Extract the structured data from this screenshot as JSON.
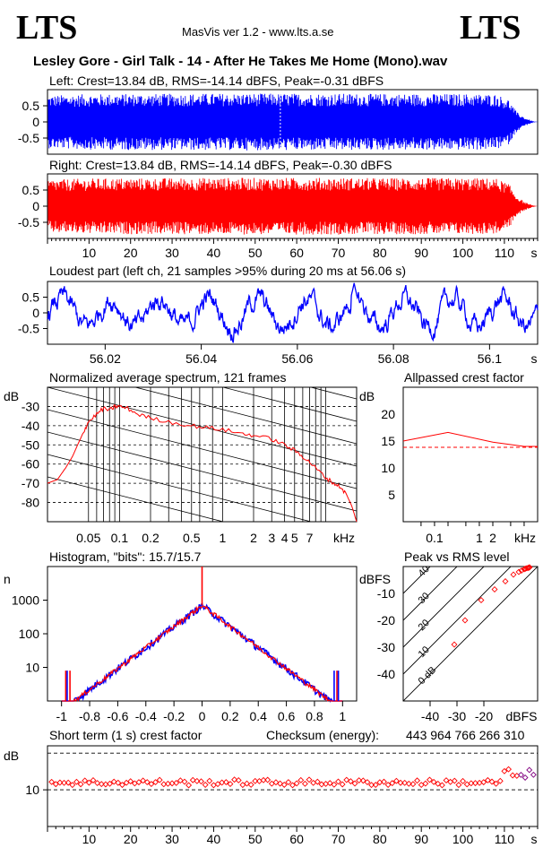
{
  "header": {
    "logo_left": "LTS",
    "logo_right": "LTS",
    "app_title": "MasVis ver 1.2 - www.lts.a.se",
    "file_title": "Lesley Gore - Girl Talk - 14 - After He Takes Me Home  (Mono).wav"
  },
  "colors": {
    "left_channel": "#0000ff",
    "right_channel": "#ff0000"
  },
  "chart_data": [
    {
      "id": "left_waveform",
      "type": "area",
      "title": "Left: Crest=13.84 dB, RMS=-14.14 dBFS, Peak=-0.31 dBFS",
      "channel": "left",
      "crest_db": 13.84,
      "rms_dbfs": -14.14,
      "peak_dbfs": -0.31,
      "xlim": [
        0,
        118
      ],
      "ylim": [
        -1,
        1
      ],
      "yticks": [
        "0.5",
        "0",
        "-0.5"
      ],
      "envelope": [
        [
          0,
          0.82
        ],
        [
          10,
          0.86
        ],
        [
          20,
          0.87
        ],
        [
          30,
          0.87
        ],
        [
          40,
          0.88
        ],
        [
          50,
          0.88
        ],
        [
          60,
          0.88
        ],
        [
          70,
          0.88
        ],
        [
          80,
          0.87
        ],
        [
          90,
          0.87
        ],
        [
          100,
          0.87
        ],
        [
          108,
          0.86
        ],
        [
          111,
          0.7
        ],
        [
          113,
          0.3
        ],
        [
          115,
          0.12
        ],
        [
          117,
          0.02
        ],
        [
          118,
          0
        ]
      ]
    },
    {
      "id": "right_waveform",
      "type": "area",
      "title": "Right: Crest=13.84 dB, RMS=-14.14 dBFS, Peak=-0.30 dBFS",
      "channel": "right",
      "crest_db": 13.84,
      "rms_dbfs": -14.14,
      "peak_dbfs": -0.3,
      "xlim": [
        0,
        118
      ],
      "ylim": [
        -1,
        1
      ],
      "yticks": [
        "0.5",
        "0",
        "-0.5"
      ],
      "xticks": [
        "10",
        "20",
        "30",
        "40",
        "50",
        "60",
        "70",
        "80",
        "90",
        "100",
        "110"
      ],
      "xunit": "s"
    },
    {
      "id": "loudest_part",
      "type": "line",
      "title": "Loudest part (left  ch, 21 samples >95% during 20 ms at 56.06 s)",
      "xlim": [
        56.008,
        56.11
      ],
      "ylim": [
        -1,
        1
      ],
      "xticks": [
        "56.02",
        "56.04",
        "56.06",
        "56.08",
        "56.1"
      ],
      "yticks": [
        "0.5",
        "0",
        "-0.5"
      ],
      "xunit": "s",
      "peak_time_s": 56.06
    },
    {
      "id": "spectrum",
      "type": "line",
      "title": "Normalized average spectrum, 121 frames",
      "ylabel": "dB",
      "xscale": "log",
      "xunit": "kHz",
      "xlim": [
        0.02,
        20
      ],
      "ylim": [
        -90,
        -20
      ],
      "yticks": [
        "-30",
        "-40",
        "-50",
        "-60",
        "-70",
        "-80"
      ],
      "xticks": [
        "0.05",
        "0.1",
        "0.2",
        "0.5",
        "1",
        "2",
        "3",
        "4",
        "5",
        "7"
      ],
      "points": [
        [
          0.02,
          -70
        ],
        [
          0.025,
          -68
        ],
        [
          0.03,
          -62
        ],
        [
          0.035,
          -56
        ],
        [
          0.04,
          -49
        ],
        [
          0.045,
          -43
        ],
        [
          0.05,
          -38
        ],
        [
          0.06,
          -34
        ],
        [
          0.07,
          -31
        ],
        [
          0.08,
          -32
        ],
        [
          0.09,
          -30
        ],
        [
          0.1,
          -30
        ],
        [
          0.12,
          -31
        ],
        [
          0.15,
          -34
        ],
        [
          0.2,
          -36
        ],
        [
          0.3,
          -38
        ],
        [
          0.5,
          -40
        ],
        [
          0.7,
          -41
        ],
        [
          1,
          -42
        ],
        [
          1.5,
          -44
        ],
        [
          2,
          -45
        ],
        [
          3,
          -47
        ],
        [
          4,
          -50
        ],
        [
          5,
          -53
        ],
        [
          6,
          -56
        ],
        [
          7,
          -59
        ],
        [
          8,
          -62
        ],
        [
          10,
          -67
        ],
        [
          12,
          -70
        ],
        [
          14,
          -72
        ],
        [
          16,
          -76
        ],
        [
          18,
          -82
        ],
        [
          20,
          -90
        ]
      ]
    },
    {
      "id": "allpassed_crest",
      "type": "line",
      "title": "Allpassed crest factor",
      "ylabel": "dB",
      "xscale": "log",
      "xunit": "kHz",
      "xlim": [
        0.02,
        20
      ],
      "ylim": [
        0,
        25
      ],
      "yticks": [
        "20",
        "15",
        "10",
        "5"
      ],
      "xticks": [
        "0.1",
        "1",
        "2"
      ],
      "points": [
        [
          0.02,
          15
        ],
        [
          0.2,
          16.6
        ],
        [
          2,
          14.8
        ],
        [
          10,
          14.0
        ],
        [
          20,
          14.0
        ]
      ],
      "reference_db": 13.84
    },
    {
      "id": "histogram",
      "type": "bar",
      "title": "Histogram, \"bits\": 15.7/15.7",
      "ylabel": "n",
      "yscale": "log",
      "xlim": [
        -1.1,
        1.1
      ],
      "ylim": [
        1,
        10000
      ],
      "yticks": [
        "1000",
        "100",
        "10"
      ],
      "xticks": [
        "-1",
        "-0.8",
        "-0.6",
        "-0.4",
        "-0.2",
        "0",
        "0.2",
        "0.4",
        "0.6",
        "0.8",
        "1"
      ],
      "center_peak": 700,
      "center_spike": 10000
    },
    {
      "id": "peak_vs_rms",
      "type": "scatter",
      "title": "Peak vs RMS level",
      "xunit": "dBFS",
      "yunit": "dBFS",
      "xlim": [
        -50,
        0
      ],
      "ylim": [
        -50,
        0
      ],
      "xticks": [
        "-40",
        "-30",
        "-20"
      ],
      "yticks": [
        "-10",
        "-20",
        "-30",
        "-40"
      ],
      "crest_lines": [
        "40",
        "30",
        "20",
        "10",
        "0 dB"
      ],
      "points": [
        [
          -31,
          -29
        ],
        [
          -27,
          -20
        ],
        [
          -21,
          -12.5
        ],
        [
          -16,
          -8.5
        ],
        [
          -12,
          -5.5
        ],
        [
          -9,
          -3
        ],
        [
          -7,
          -2
        ],
        [
          -6,
          -1.5
        ],
        [
          -5,
          -1
        ],
        [
          -4.5,
          -0.8
        ],
        [
          -4,
          -0.6
        ],
        [
          -3.5,
          -0.5
        ],
        [
          -3.2,
          -0.4
        ],
        [
          -3,
          -0.3
        ]
      ]
    },
    {
      "id": "short_term_crest",
      "type": "scatter",
      "title": "Short term (1 s) crest factor",
      "checksum_label": "Checksum (energy):",
      "checksum_value": "443 964 766 266 310",
      "ylabel": "dB",
      "xlim": [
        0,
        118
      ],
      "ylim": [
        0,
        22
      ],
      "yticks": [
        "10"
      ],
      "xticks": [
        "10",
        "20",
        "30",
        "40",
        "50",
        "60",
        "70",
        "80",
        "90",
        "100",
        "110"
      ],
      "xunit": "s",
      "dashed_levels_db": [
        10,
        20
      ],
      "marker_color_main": "#ff0000",
      "marker_color_end": "#800080"
    }
  ]
}
